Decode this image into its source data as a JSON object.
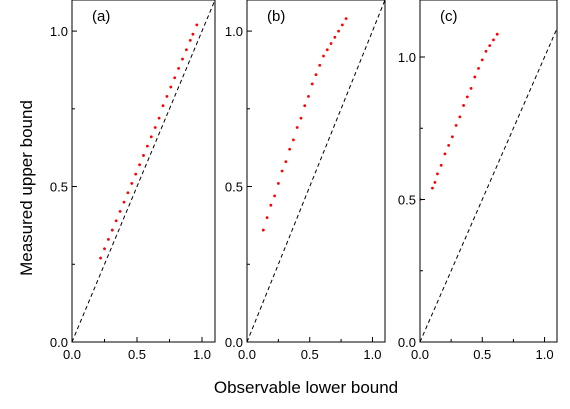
{
  "chart_data": [
    {
      "type": "scatter",
      "panel_label": "(a)",
      "xlim": [
        0.0,
        1.1
      ],
      "ylim": [
        0.0,
        1.1
      ],
      "x_ticks": [
        0.0,
        0.5,
        1.0
      ],
      "x_tick_labels": [
        "0.0",
        "0.5",
        "1.0"
      ],
      "y_ticks": [
        0.0,
        0.5,
        1.0
      ],
      "y_tick_labels": [
        "0.0",
        "0.5",
        "1.0"
      ],
      "reference_line": {
        "style": "dashed",
        "color": "#000000",
        "slope": 1,
        "intercept": 0
      },
      "series": [
        {
          "color": "#ff0000",
          "points": [
            [
              0.22,
              0.27
            ],
            [
              0.25,
              0.3
            ],
            [
              0.28,
              0.33
            ],
            [
              0.31,
              0.36
            ],
            [
              0.34,
              0.39
            ],
            [
              0.37,
              0.42
            ],
            [
              0.4,
              0.45
            ],
            [
              0.43,
              0.48
            ],
            [
              0.46,
              0.51
            ],
            [
              0.49,
              0.54
            ],
            [
              0.52,
              0.57
            ],
            [
              0.55,
              0.6
            ],
            [
              0.58,
              0.63
            ],
            [
              0.61,
              0.66
            ],
            [
              0.64,
              0.69
            ],
            [
              0.67,
              0.72
            ],
            [
              0.7,
              0.76
            ],
            [
              0.73,
              0.79
            ],
            [
              0.76,
              0.82
            ],
            [
              0.79,
              0.85
            ],
            [
              0.82,
              0.88
            ],
            [
              0.85,
              0.91
            ],
            [
              0.88,
              0.94
            ],
            [
              0.91,
              0.97
            ],
            [
              0.93,
              0.99
            ],
            [
              0.96,
              1.02
            ]
          ]
        }
      ]
    },
    {
      "type": "scatter",
      "panel_label": "(b)",
      "xlim": [
        0.0,
        1.1
      ],
      "ylim": [
        0.0,
        1.1
      ],
      "x_ticks": [
        0.0,
        0.5,
        1.0
      ],
      "x_tick_labels": [
        "0.0",
        "0.5",
        "1.0"
      ],
      "y_ticks": [
        0.0,
        0.5,
        1.0
      ],
      "y_tick_labels": [
        "0.0",
        "0.5",
        "1.0"
      ],
      "reference_line": {
        "style": "dashed",
        "color": "#000000",
        "slope": 1,
        "intercept": 0
      },
      "series": [
        {
          "color": "#ff0000",
          "points": [
            [
              0.13,
              0.36
            ],
            [
              0.16,
              0.4
            ],
            [
              0.19,
              0.44
            ],
            [
              0.22,
              0.47
            ],
            [
              0.25,
              0.51
            ],
            [
              0.28,
              0.55
            ],
            [
              0.31,
              0.58
            ],
            [
              0.34,
              0.62
            ],
            [
              0.37,
              0.65
            ],
            [
              0.4,
              0.69
            ],
            [
              0.43,
              0.72
            ],
            [
              0.46,
              0.76
            ],
            [
              0.49,
              0.79
            ],
            [
              0.52,
              0.83
            ],
            [
              0.55,
              0.86
            ],
            [
              0.58,
              0.89
            ],
            [
              0.61,
              0.92
            ],
            [
              0.64,
              0.94
            ],
            [
              0.67,
              0.96
            ],
            [
              0.7,
              0.98
            ],
            [
              0.73,
              1.0
            ],
            [
              0.76,
              1.02
            ],
            [
              0.79,
              1.04
            ]
          ]
        }
      ]
    },
    {
      "type": "scatter",
      "panel_label": "(c)",
      "xlim": [
        0.0,
        1.1
      ],
      "ylim": [
        0.0,
        1.2
      ],
      "x_ticks": [
        0.0,
        0.5,
        1.0
      ],
      "x_tick_labels": [
        "0.0",
        "0.5",
        "1.0"
      ],
      "y_ticks": [
        0.0,
        0.5,
        1.0
      ],
      "y_tick_labels": [
        "0.0",
        "0.5",
        "1.0"
      ],
      "reference_line": {
        "style": "dashed",
        "color": "#000000",
        "slope": 1,
        "intercept": 0
      },
      "series": [
        {
          "color": "#ff0000",
          "points": [
            [
              0.0,
              0.5
            ],
            [
              0.1,
              0.54
            ],
            [
              0.12,
              0.56
            ],
            [
              0.14,
              0.59
            ],
            [
              0.17,
              0.62
            ],
            [
              0.2,
              0.66
            ],
            [
              0.23,
              0.69
            ],
            [
              0.26,
              0.72
            ],
            [
              0.29,
              0.76
            ],
            [
              0.32,
              0.79
            ],
            [
              0.35,
              0.83
            ],
            [
              0.38,
              0.86
            ],
            [
              0.41,
              0.89
            ],
            [
              0.44,
              0.93
            ],
            [
              0.47,
              0.96
            ],
            [
              0.5,
              0.99
            ],
            [
              0.53,
              1.02
            ],
            [
              0.56,
              1.04
            ],
            [
              0.59,
              1.06
            ],
            [
              0.62,
              1.08
            ]
          ]
        }
      ]
    }
  ],
  "ylabel": "Measured upper bound",
  "xlabel": "Observable lower bound"
}
